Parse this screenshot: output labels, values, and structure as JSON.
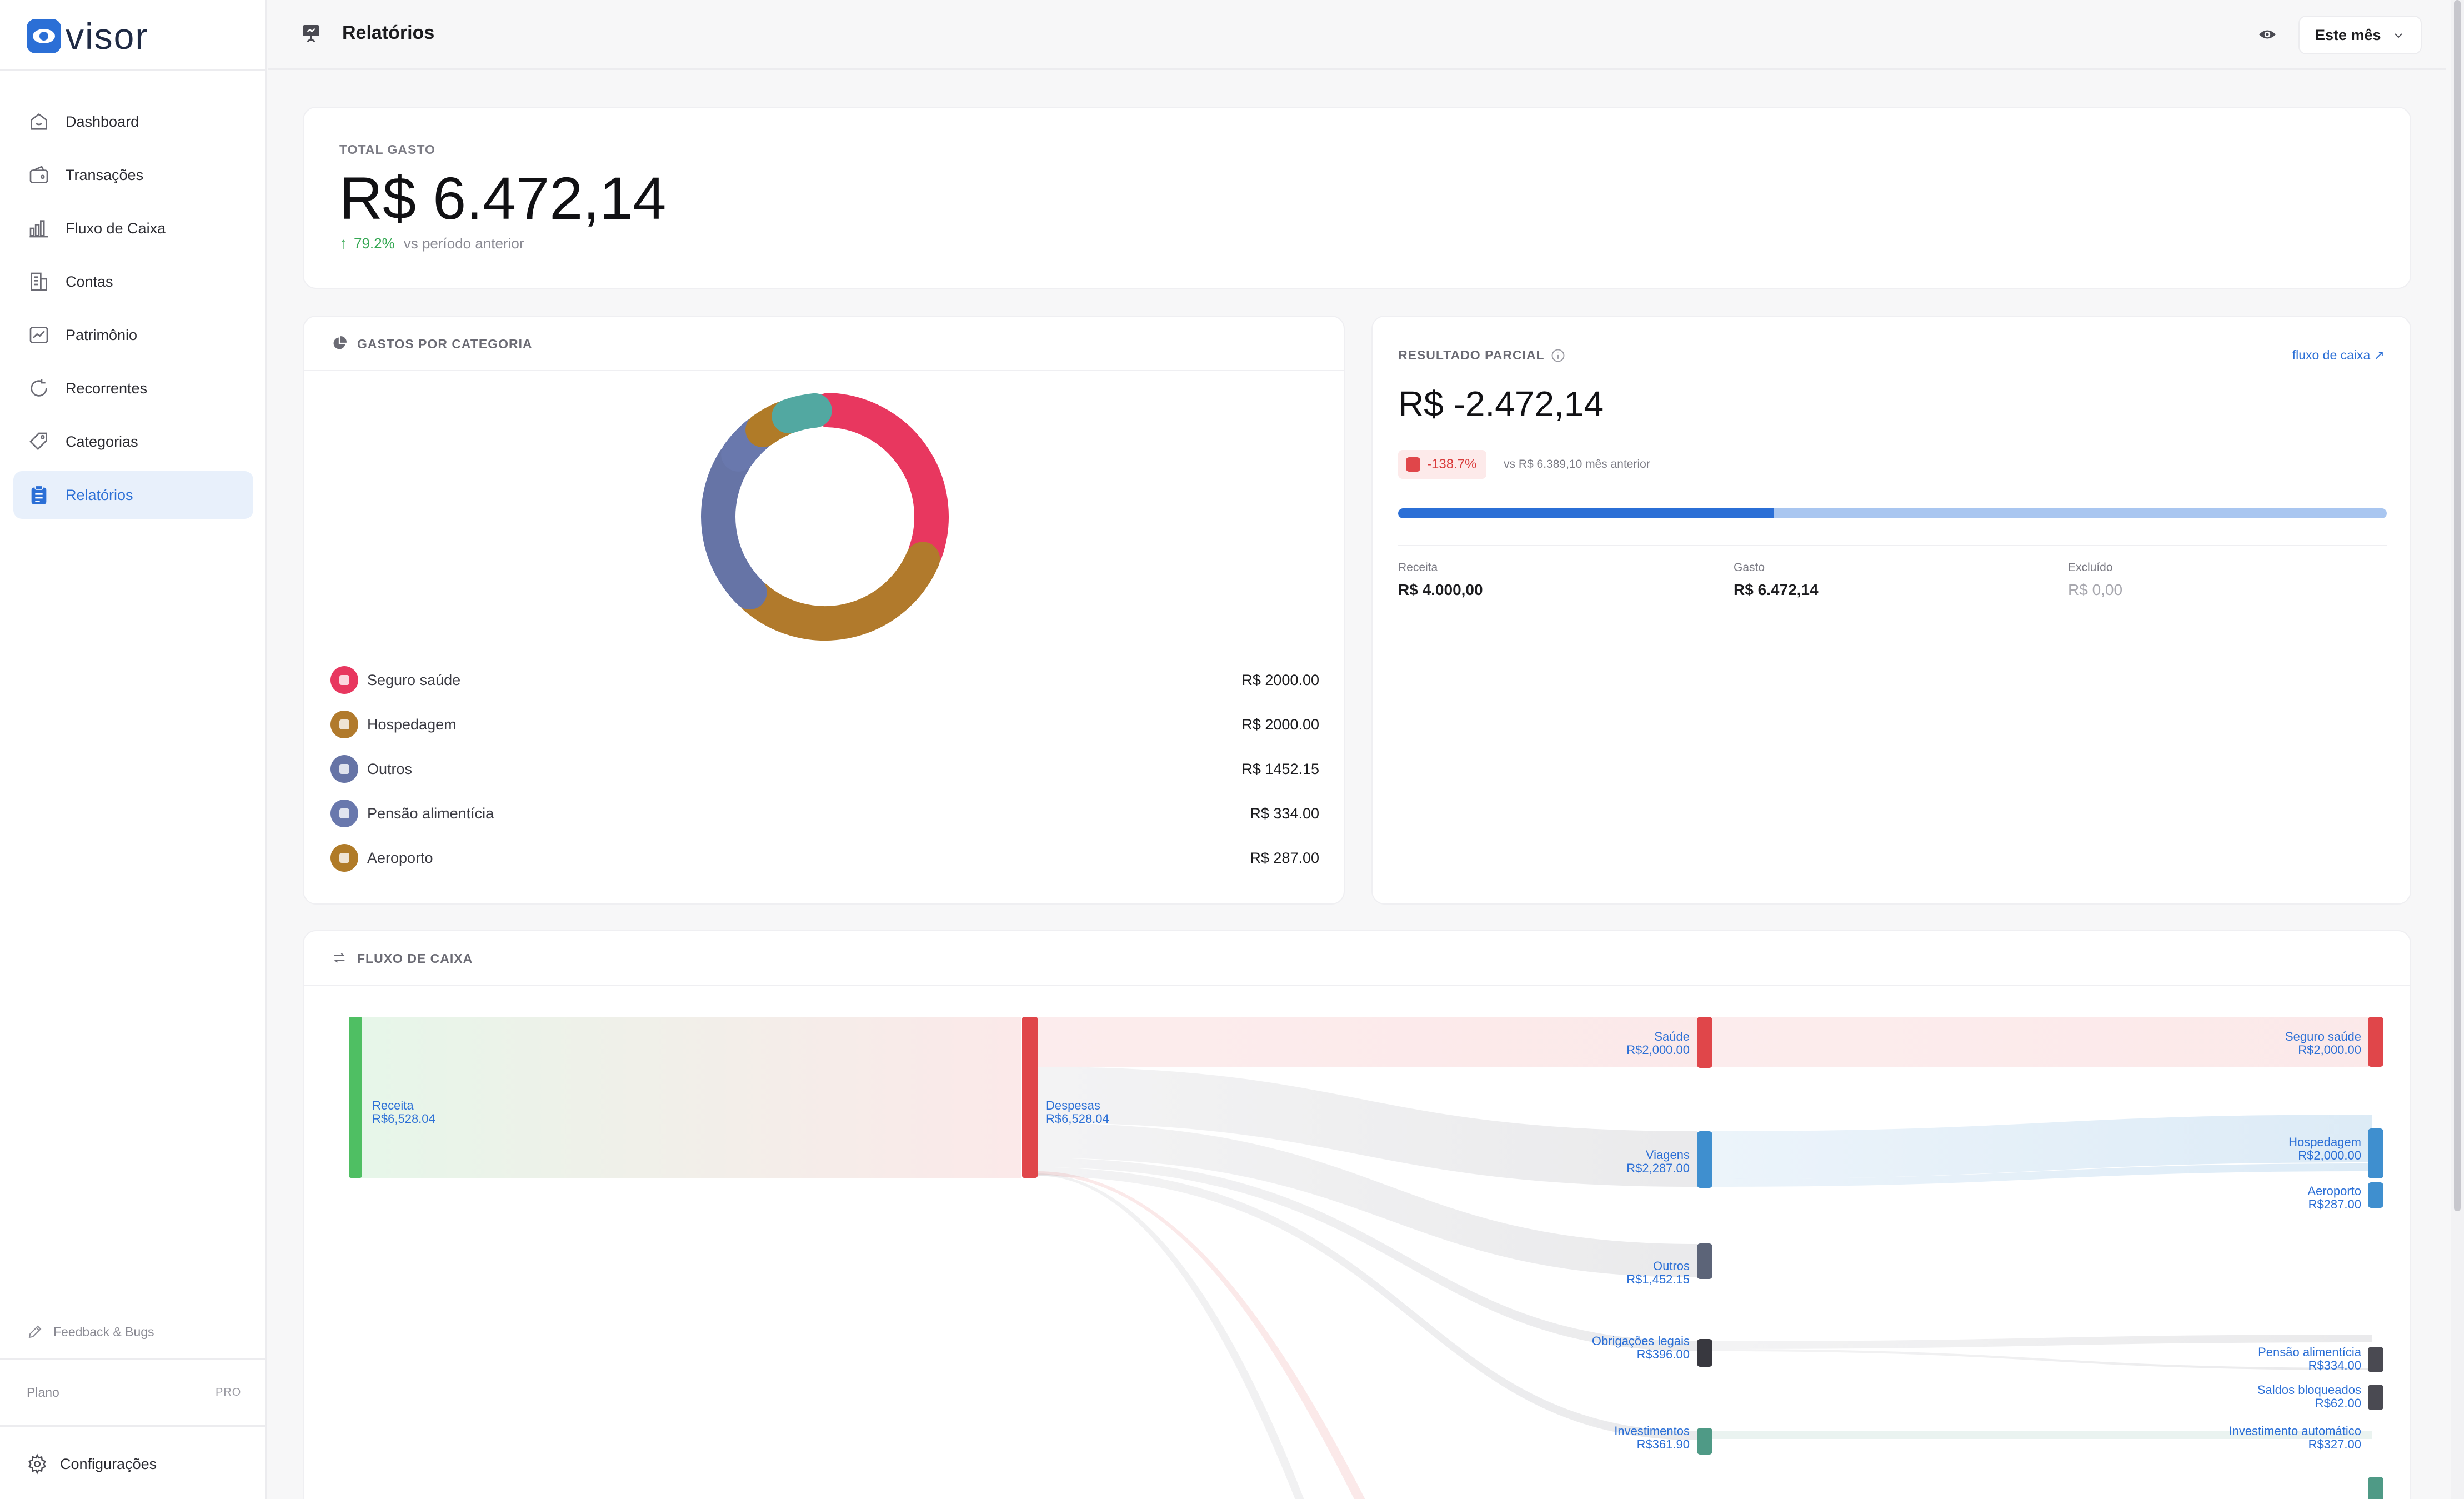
{
  "app": {
    "name": "visor"
  },
  "sidebar": {
    "items": [
      {
        "label": "Dashboard",
        "icon": "home-icon"
      },
      {
        "label": "Transações",
        "icon": "wallet-icon"
      },
      {
        "label": "Fluxo de Caixa",
        "icon": "bar-chart-icon"
      },
      {
        "label": "Contas",
        "icon": "building-icon"
      },
      {
        "label": "Patrimônio",
        "icon": "trend-chart-icon"
      },
      {
        "label": "Recorrentes",
        "icon": "refresh-icon"
      },
      {
        "label": "Categorias",
        "icon": "tag-icon"
      },
      {
        "label": "Relatórios",
        "icon": "clipboard-icon",
        "active": true
      }
    ],
    "feedback_label": "Feedback & Bugs",
    "plan_label": "Plano",
    "plan_value": "PRO",
    "settings_label": "Configurações"
  },
  "header": {
    "title": "Relatórios",
    "period": "Este mês"
  },
  "total": {
    "label": "TOTAL GASTO",
    "value": "R$ 6.472,14",
    "change_pct": "79.2%",
    "change_vs": "vs período anterior"
  },
  "categories_card": {
    "title": "GASTOS POR CATEGORIA",
    "rows": [
      {
        "name": "Seguro saúde",
        "amount": "R$ 2000.00",
        "color": "#e8375f"
      },
      {
        "name": "Hospedagem",
        "amount": "R$ 2000.00",
        "color": "#b17a2c"
      },
      {
        "name": "Outros",
        "amount": "R$ 1452.15",
        "color": "#6674a6"
      },
      {
        "name": "Pensão alimentícia",
        "amount": "R$ 334.00",
        "color": "#6978ad"
      },
      {
        "name": "Aeroporto",
        "amount": "R$ 287.00",
        "color": "#b07b28"
      }
    ]
  },
  "chart_data": {
    "type": "pie",
    "categories": [
      "Seguro saúde",
      "Hospedagem",
      "Outros",
      "Pensão alimentícia",
      "Aeroporto",
      "Investimento automático",
      "Saldos bloqueados"
    ],
    "values": [
      2000.0,
      2000.0,
      1452.15,
      334.0,
      287.0,
      327.0,
      62.0
    ],
    "colors": [
      "#e8375f",
      "#b17a2c",
      "#6674a6",
      "#6978ad",
      "#b07b28",
      "#52a8a1",
      "#8b5cc8"
    ]
  },
  "result": {
    "label": "RESULTADO PARCIAL",
    "link": "fluxo de caixa ↗",
    "value": "R$ -2.472,14",
    "change_pct": "-138.7%",
    "change_vs": "vs R$ 6.389,10 mês anterior",
    "progress": 0.38,
    "receita_label": "Receita",
    "receita_value": "R$ 4.000,00",
    "gasto_label": "Gasto",
    "gasto_value": "R$ 6.472,14",
    "excluido_label": "Excluído",
    "excluido_value": "R$ 0,00"
  },
  "cashflow": {
    "title": "FLUXO DE CAIXA",
    "nodes": [
      {
        "id": "receita",
        "name": "Receita",
        "value": "R$6,528.04",
        "color": "#4fbf63"
      },
      {
        "id": "despesas",
        "name": "Despesas",
        "value": "R$6,528.04",
        "color": "#e0464a"
      },
      {
        "id": "saude",
        "name": "Saúde",
        "value": "R$2,000.00",
        "color": "#e0464a"
      },
      {
        "id": "viagens",
        "name": "Viagens",
        "value": "R$2,287.00",
        "color": "#3f8fcf"
      },
      {
        "id": "outros",
        "name": "Outros",
        "value": "R$1,452.15",
        "color": "#5c6478"
      },
      {
        "id": "obrigacoes",
        "name": "Obrigações legais",
        "value": "R$396.00",
        "color": "#38383f"
      },
      {
        "id": "investimentos",
        "name": "Investimentos",
        "value": "R$361.90",
        "color": "#4f9a86"
      },
      {
        "id": "seguro",
        "name": "Seguro saúde",
        "value": "R$2,000.00",
        "color": "#e0464a"
      },
      {
        "id": "hospedagem",
        "name": "Hospedagem",
        "value": "R$2,000.00",
        "color": "#3f8fcf"
      },
      {
        "id": "aeroporto",
        "name": "Aeroporto",
        "value": "R$287.00",
        "color": "#3f8fcf"
      },
      {
        "id": "pensao",
        "name": "Pensão alimentícia",
        "value": "R$334.00",
        "color": "#4a4a52"
      },
      {
        "id": "saldos",
        "name": "Saldos bloqueados",
        "value": "R$62.00",
        "color": "#4a4a52"
      },
      {
        "id": "invauto",
        "name": "Investimento automático",
        "value": "R$327.00",
        "color": "#4f9a86"
      }
    ]
  }
}
